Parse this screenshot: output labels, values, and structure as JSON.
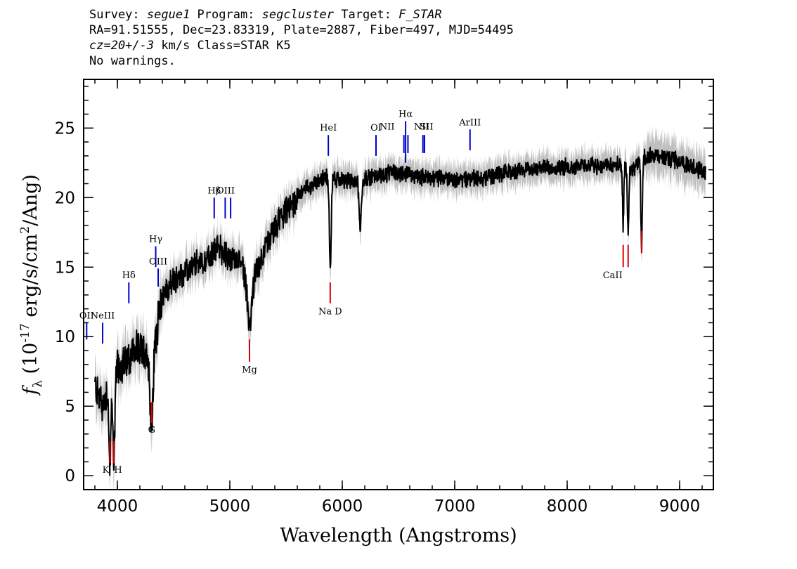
{
  "header": {
    "line1": {
      "survey_label": "Survey: ",
      "survey": "segue1",
      "program_label": " Program: ",
      "program": "segcluster",
      "target_label": " Target: ",
      "target": "F_STAR"
    },
    "line2": "RA=91.51555, Dec=23.83319, Plate=2887, Fiber=497, MJD=54495",
    "line3": {
      "cz": "cz=20+/-3",
      "rest": " km/s Class=STAR K5"
    },
    "line4": "No warnings."
  },
  "chart_data": {
    "type": "line",
    "xlabel": "Wavelength (Angstroms)",
    "ylabel_parts": {
      "f": "f",
      "sub": "λ",
      "pre": " (10",
      "sup": "-17",
      "mid": " erg/s/cm",
      "sup2": "2",
      "post": "/Ang)"
    },
    "xlim": [
      3700,
      9300
    ],
    "ylim": [
      -1,
      28.5
    ],
    "xticks": [
      4000,
      5000,
      6000,
      7000,
      8000,
      9000
    ],
    "yticks": [
      0,
      5,
      10,
      15,
      20,
      25
    ],
    "colors": {
      "flux": "#000000",
      "error_band": "#bfbfbf",
      "emission": "#0000cc",
      "absorption": "#dd0000"
    },
    "continuum_nodes": [
      [
        3800,
        6.5
      ],
      [
        3870,
        5.0
      ],
      [
        3950,
        7.5
      ],
      [
        4050,
        8.0
      ],
      [
        4150,
        9.0
      ],
      [
        4250,
        9.0
      ],
      [
        4300,
        8.0
      ],
      [
        4350,
        10.5
      ],
      [
        4400,
        13.0
      ],
      [
        4500,
        14.0
      ],
      [
        4600,
        14.5
      ],
      [
        4700,
        15.2
      ],
      [
        4800,
        15.5
      ],
      [
        4900,
        16.5
      ],
      [
        5000,
        15.5
      ],
      [
        5100,
        15.5
      ],
      [
        5180,
        13.0
      ],
      [
        5250,
        15.0
      ],
      [
        5350,
        17.0
      ],
      [
        5450,
        18.5
      ],
      [
        5550,
        19.5
      ],
      [
        5650,
        20.5
      ],
      [
        5750,
        21.0
      ],
      [
        5850,
        21.5
      ],
      [
        5950,
        21.3
      ],
      [
        6100,
        21.2
      ],
      [
        6300,
        21.6
      ],
      [
        6500,
        21.8
      ],
      [
        6700,
        21.5
      ],
      [
        7000,
        21.3
      ],
      [
        7300,
        21.5
      ],
      [
        7600,
        22.0
      ],
      [
        7900,
        22.2
      ],
      [
        8200,
        22.3
      ],
      [
        8450,
        22.3
      ],
      [
        8600,
        22.0
      ],
      [
        8680,
        23.0
      ],
      [
        8800,
        23.0
      ],
      [
        9000,
        22.6
      ],
      [
        9230,
        21.8
      ]
    ],
    "absorption_features": [
      {
        "x": 3934,
        "y": 0.8,
        "w": 14
      },
      {
        "x": 3969,
        "y": 1.5,
        "w": 14
      },
      {
        "x": 4305,
        "y": 3.5,
        "w": 18
      },
      {
        "x": 5175,
        "y": 10.5,
        "w": 22
      },
      {
        "x": 5893,
        "y": 15.0,
        "w": 12
      },
      {
        "x": 6160,
        "y": 18.0,
        "w": 15
      },
      {
        "x": 8498,
        "y": 18.0,
        "w": 8
      },
      {
        "x": 8542,
        "y": 17.3,
        "w": 9
      },
      {
        "x": 8662,
        "y": 16.2,
        "w": 9
      }
    ],
    "emission_lines": [
      {
        "x": 3727,
        "label": "OII",
        "y_top": 11.0,
        "y_bot": 9.8,
        "label_y": 11.3
      },
      {
        "x": 3869,
        "label": "NeIII",
        "y_top": 11.0,
        "y_bot": 9.5,
        "label_y": 11.3
      },
      {
        "x": 4102,
        "label": "Hδ",
        "y_top": 13.9,
        "y_bot": 12.4,
        "label_y": 14.2
      },
      {
        "x": 4341,
        "label": "Hγ",
        "y_top": 16.5,
        "y_bot": 15.0,
        "label_y": 16.8
      },
      {
        "x": 4363,
        "label": "OIII",
        "y_top": 14.9,
        "y_bot": 13.6,
        "label_y": 15.2
      },
      {
        "x": 4861,
        "label": "Hβ",
        "y_top": 20.0,
        "y_bot": 18.5,
        "label_y": 20.3
      },
      {
        "x": 4959,
        "label": "OIII",
        "y_top": 20.0,
        "y_bot": 18.5,
        "label_y": 20.3,
        "label_offset": 0.55
      },
      {
        "x": 5007,
        "label": "",
        "y_top": 20.0,
        "y_bot": 18.5,
        "label_y": 20.3
      },
      {
        "x": 5876,
        "label": "HeI",
        "y_top": 24.5,
        "y_bot": 23.0,
        "label_y": 24.8
      },
      {
        "x": 6300,
        "label": "OI",
        "y_top": 24.5,
        "y_bot": 23.0,
        "label_y": 24.8
      },
      {
        "x": 6548,
        "label": "NII",
        "y_top": 24.5,
        "y_bot": 23.2,
        "label_y": 24.9,
        "label_offset": -24
      },
      {
        "x": 6563,
        "label": "Hα",
        "y_top": 25.5,
        "y_bot": 22.5,
        "label_y": 25.8
      },
      {
        "x": 6584,
        "label": "",
        "y_top": 24.5,
        "y_bot": 23.2,
        "label_y": 24.8
      },
      {
        "x": 6717,
        "label": "NII",
        "y_top": 24.5,
        "y_bot": 23.2,
        "label_y": 24.9,
        "label_offset": -2
      },
      {
        "x": 6731,
        "label": "SII",
        "y_top": 24.5,
        "y_bot": 23.2,
        "label_y": 24.9,
        "label_offset": 3
      },
      {
        "x": 7136,
        "label": "ArIII",
        "y_top": 24.9,
        "y_bot": 23.4,
        "label_y": 25.2
      }
    ],
    "absorption_lines": [
      {
        "x": 3934,
        "label": "K",
        "y_top": 2.5,
        "y_bot": 0.9,
        "label_y": 0.2,
        "label_offset": -6
      },
      {
        "x": 3969,
        "label": "H",
        "y_top": 2.5,
        "y_bot": 0.9,
        "label_y": 0.2,
        "label_offset": 6
      },
      {
        "x": 4305,
        "label": "G",
        "y_top": 5.3,
        "y_bot": 3.8,
        "label_y": 3.1
      },
      {
        "x": 5175,
        "label": "Mg",
        "y_top": 9.8,
        "y_bot": 8.2,
        "label_y": 7.4
      },
      {
        "x": 5893,
        "label": "Na D",
        "y_top": 13.9,
        "y_bot": 12.4,
        "label_y": 11.6
      },
      {
        "x": 8498,
        "label": "",
        "y_top": 16.6,
        "y_bot": 15.0,
        "label_y": 14.2
      },
      {
        "x": 8542,
        "label": "CaII",
        "y_top": 16.6,
        "y_bot": 15.0,
        "label_y": 14.2,
        "label_offset": -22
      },
      {
        "x": 8662,
        "label": "",
        "y_top": 17.6,
        "y_bot": 16.0,
        "label_y": 15.2
      }
    ]
  }
}
